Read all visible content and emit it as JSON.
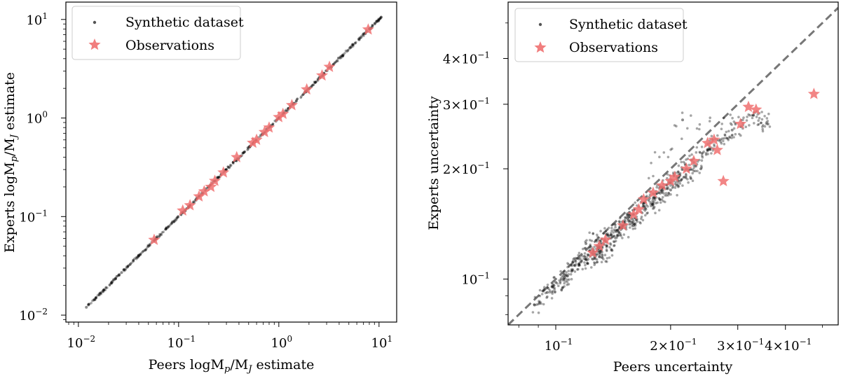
{
  "chart_data": [
    {
      "type": "scatter",
      "xlabel_parts": [
        "Peers logM",
        "p",
        "/M",
        "J",
        " estimate"
      ],
      "ylabel_parts": [
        "Experts logM",
        "p",
        "/M",
        "J",
        " estimate"
      ],
      "x_scale": "log",
      "y_scale": "log",
      "xlim": [
        0.0075,
        15
      ],
      "ylim": [
        0.0085,
        15
      ],
      "x_ticks": [
        {
          "value": 0.01,
          "base": "10",
          "exp": "−2"
        },
        {
          "value": 0.1,
          "base": "10",
          "exp": "−1"
        },
        {
          "value": 1,
          "base": "10",
          "exp": "0"
        },
        {
          "value": 10,
          "base": "10",
          "exp": "1"
        }
      ],
      "y_ticks": [
        {
          "value": 0.01,
          "base": "10",
          "exp": "−2"
        },
        {
          "value": 0.1,
          "base": "10",
          "exp": "−1"
        },
        {
          "value": 1,
          "base": "10",
          "exp": "0"
        },
        {
          "value": 10,
          "base": "10",
          "exp": "1"
        }
      ],
      "legend_position": "top-left",
      "series": [
        {
          "name": "Synthetic dataset",
          "marker": "dot",
          "color": "#000000",
          "points": [
            [
              0.012,
              0.012
            ],
            [
              0.015,
              0.015
            ],
            [
              0.018,
              0.018
            ],
            [
              0.022,
              0.022
            ],
            [
              0.027,
              0.027
            ],
            [
              0.033,
              0.033
            ],
            [
              0.04,
              0.04
            ],
            [
              0.05,
              0.05
            ],
            [
              0.06,
              0.06
            ],
            [
              0.075,
              0.075
            ],
            [
              0.09,
              0.09
            ],
            [
              0.11,
              0.11
            ],
            [
              0.13,
              0.13
            ],
            [
              0.16,
              0.16
            ],
            [
              0.2,
              0.2
            ],
            [
              0.25,
              0.25
            ],
            [
              0.3,
              0.3
            ],
            [
              0.37,
              0.37
            ],
            [
              0.45,
              0.45
            ],
            [
              0.55,
              0.55
            ],
            [
              0.68,
              0.68
            ],
            [
              0.82,
              0.82
            ],
            [
              1.0,
              1.0
            ],
            [
              1.25,
              1.25
            ],
            [
              1.5,
              1.5
            ],
            [
              1.9,
              1.9
            ],
            [
              2.3,
              2.3
            ],
            [
              2.8,
              2.8
            ],
            [
              3.5,
              3.5
            ],
            [
              4.3,
              4.3
            ],
            [
              5.3,
              5.3
            ],
            [
              6.5,
              6.5
            ],
            [
              8.0,
              8.0
            ],
            [
              9.5,
              9.5
            ],
            [
              10.5,
              10.5
            ]
          ]
        },
        {
          "name": "Observations",
          "marker": "star",
          "color": "#f07070",
          "points": [
            [
              0.057,
              0.058
            ],
            [
              0.11,
              0.115
            ],
            [
              0.13,
              0.13
            ],
            [
              0.16,
              0.16
            ],
            [
              0.18,
              0.18
            ],
            [
              0.21,
              0.2
            ],
            [
              0.23,
              0.23
            ],
            [
              0.28,
              0.28
            ],
            [
              0.38,
              0.4
            ],
            [
              0.55,
              0.56
            ],
            [
              0.6,
              0.6
            ],
            [
              0.72,
              0.72
            ],
            [
              0.8,
              0.8
            ],
            [
              1.0,
              1.02
            ],
            [
              1.1,
              1.1
            ],
            [
              1.35,
              1.35
            ],
            [
              1.9,
              1.95
            ],
            [
              2.7,
              2.7
            ],
            [
              3.2,
              3.3
            ],
            [
              7.8,
              7.9
            ]
          ]
        }
      ]
    },
    {
      "type": "scatter",
      "xlabel": "Peers uncertainty",
      "ylabel": "Experts uncertainty",
      "x_scale": "log",
      "y_scale": "log",
      "xlim": [
        0.075,
        0.55
      ],
      "ylim": [
        0.075,
        0.57
      ],
      "x_ticks": [
        {
          "value": 0.1,
          "base": "10",
          "exp": "−1",
          "label": "10"
        },
        {
          "value": 0.2,
          "label": "2×10",
          "exp": "−1"
        },
        {
          "value": 0.3,
          "label": "3×10",
          "exp": "−1"
        },
        {
          "value": 0.4,
          "label": "4×10",
          "exp": "−1"
        }
      ],
      "y_ticks": [
        {
          "value": 0.1,
          "label": "10",
          "exp": "−1"
        },
        {
          "value": 0.2,
          "label": "2×10",
          "exp": "−1"
        },
        {
          "value": 0.3,
          "label": "3×10",
          "exp": "−1"
        },
        {
          "value": 0.4,
          "label": "4×10",
          "exp": "−1"
        }
      ],
      "reference_line": "y = x (dashed grey)",
      "legend_position": "top-left",
      "series": [
        {
          "name": "Synthetic dataset",
          "marker": "dot",
          "color": "#000000",
          "points": [
            [
              0.088,
              0.085
            ],
            [
              0.095,
              0.092
            ],
            [
              0.1,
              0.098
            ],
            [
              0.105,
              0.1
            ],
            [
              0.11,
              0.105
            ],
            [
              0.115,
              0.11
            ],
            [
              0.12,
              0.113
            ],
            [
              0.125,
              0.118
            ],
            [
              0.13,
              0.122
            ],
            [
              0.135,
              0.127
            ],
            [
              0.14,
              0.132
            ],
            [
              0.145,
              0.136
            ],
            [
              0.15,
              0.14
            ],
            [
              0.155,
              0.145
            ],
            [
              0.16,
              0.15
            ],
            [
              0.17,
              0.158
            ],
            [
              0.18,
              0.166
            ],
            [
              0.19,
              0.175
            ],
            [
              0.2,
              0.183
            ],
            [
              0.21,
              0.19
            ],
            [
              0.22,
              0.2
            ],
            [
              0.23,
              0.208
            ],
            [
              0.25,
              0.225
            ],
            [
              0.27,
              0.24
            ],
            [
              0.29,
              0.255
            ],
            [
              0.33,
              0.28
            ],
            [
              0.36,
              0.265
            ],
            [
              0.215,
              0.272
            ],
            [
              0.14,
              0.12
            ],
            [
              0.13,
              0.115
            ],
            [
              0.12,
              0.125
            ],
            [
              0.16,
              0.14
            ],
            [
              0.18,
              0.16
            ],
            [
              0.2,
              0.175
            ],
            [
              0.24,
              0.2
            ]
          ]
        },
        {
          "name": "Observations",
          "marker": "star",
          "color": "#f07070",
          "points": [
            [
              0.125,
              0.118
            ],
            [
              0.13,
              0.123
            ],
            [
              0.135,
              0.128
            ],
            [
              0.15,
              0.14
            ],
            [
              0.16,
              0.15
            ],
            [
              0.165,
              0.155
            ],
            [
              0.17,
              0.165
            ],
            [
              0.18,
              0.172
            ],
            [
              0.19,
              0.18
            ],
            [
              0.2,
              0.185
            ],
            [
              0.205,
              0.19
            ],
            [
              0.22,
              0.2
            ],
            [
              0.23,
              0.21
            ],
            [
              0.25,
              0.235
            ],
            [
              0.26,
              0.24
            ],
            [
              0.265,
              0.225
            ],
            [
              0.275,
              0.185
            ],
            [
              0.305,
              0.265
            ],
            [
              0.32,
              0.295
            ],
            [
              0.335,
              0.29
            ],
            [
              0.475,
              0.32
            ]
          ]
        }
      ]
    }
  ]
}
